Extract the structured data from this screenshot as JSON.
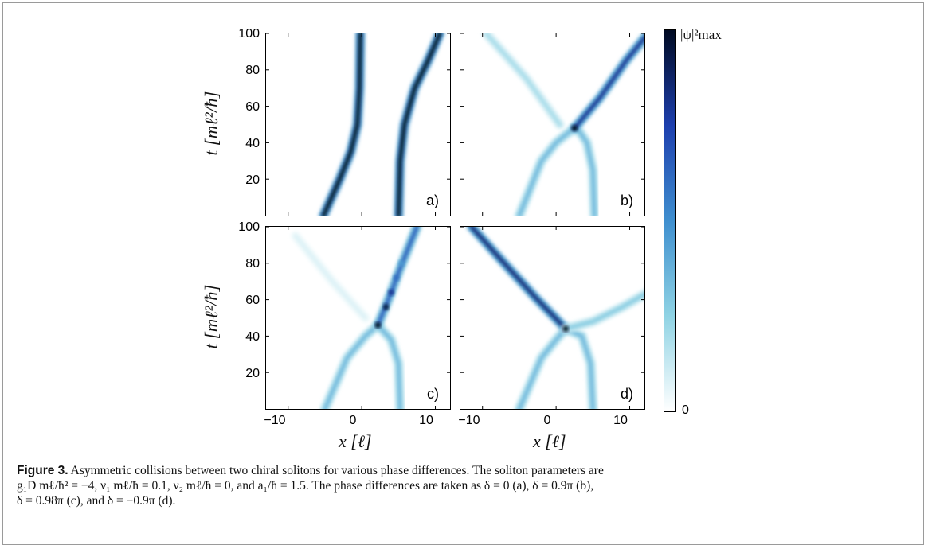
{
  "figure": {
    "ylabel": "t [mℓ²/ħ]",
    "xlabel": "x [ℓ]",
    "colorbar": {
      "max_label": "|ψ|²max",
      "min_label": "0",
      "colors": [
        "#ffffff",
        "#8fd3e4",
        "#3f8fcf",
        "#1d3fae",
        "#000a22"
      ]
    }
  },
  "chart_data": [
    {
      "type": "heatmap",
      "panel_label": "a)",
      "x_ticks": [
        "−10",
        "0",
        "10"
      ],
      "y_ticks": [
        "100",
        "80",
        "60",
        "40",
        "20"
      ],
      "xlim": [
        -13,
        12
      ],
      "ylim": [
        0,
        100
      ],
      "tracks": [
        {
          "points": [
            [
              -5.2,
              0
            ],
            [
              -3.0,
              20
            ],
            [
              -1.5,
              35
            ],
            [
              -0.6,
              50
            ],
            [
              -0.3,
              70
            ],
            [
              -0.2,
              100
            ]
          ],
          "intensity": 1.0
        },
        {
          "points": [
            [
              5.0,
              0
            ],
            [
              5.2,
              30
            ],
            [
              5.8,
              50
            ],
            [
              7.2,
              70
            ],
            [
              9.0,
              85
            ],
            [
              10.6,
              100
            ]
          ],
          "intensity": 1.0
        }
      ]
    },
    {
      "type": "heatmap",
      "panel_label": "b)",
      "x_ticks": [],
      "y_ticks": [],
      "xlim": [
        -13,
        12
      ],
      "ylim": [
        0,
        100
      ],
      "tracks": [
        {
          "points": [
            [
              -5.0,
              0
            ],
            [
              -2.0,
              30
            ],
            [
              0.0,
              40
            ],
            [
              1.5,
              45
            ],
            [
              2.5,
              48
            ]
          ],
          "intensity": 0.35
        },
        {
          "points": [
            [
              5.2,
              0
            ],
            [
              5.0,
              25
            ],
            [
              4.2,
              40
            ],
            [
              3.2,
              46
            ],
            [
              2.5,
              48
            ]
          ],
          "intensity": 0.35
        },
        {
          "points": [
            [
              2.5,
              48
            ],
            [
              6.0,
              65
            ],
            [
              9.5,
              85
            ],
            [
              12.5,
              100
            ]
          ],
          "intensity": 0.8
        },
        {
          "points": [
            [
              0.5,
              50
            ],
            [
              -4.0,
              75
            ],
            [
              -9.5,
              100
            ]
          ],
          "intensity": 0.2
        }
      ],
      "peaks": [
        [
          2.5,
          48,
          1.0
        ]
      ]
    },
    {
      "type": "heatmap",
      "panel_label": "c)",
      "x_ticks": [
        "−10",
        "0",
        "10"
      ],
      "y_ticks": [
        "100",
        "80",
        "60",
        "40",
        "20"
      ],
      "xlim": [
        -13,
        12
      ],
      "ylim": [
        0,
        100
      ],
      "tracks": [
        {
          "points": [
            [
              -5.0,
              0
            ],
            [
              -2.0,
              28
            ],
            [
              0.5,
              40
            ],
            [
              2.2,
              46
            ]
          ],
          "intensity": 0.35
        },
        {
          "points": [
            [
              5.2,
              0
            ],
            [
              5.0,
              25
            ],
            [
              4.0,
              38
            ],
            [
              2.2,
              46
            ]
          ],
          "intensity": 0.35
        },
        {
          "points": [
            [
              2.2,
              46
            ],
            [
              3.2,
              56
            ],
            [
              4.0,
              64
            ],
            [
              5.0,
              75
            ],
            [
              6.5,
              90
            ],
            [
              7.5,
              100
            ]
          ],
          "intensity": 0.65
        },
        {
          "points": [
            [
              0.5,
              50
            ],
            [
              -4.0,
              70
            ],
            [
              -9.0,
              95
            ]
          ],
          "intensity": 0.08
        }
      ],
      "peaks": [
        [
          2.2,
          46,
          1.0
        ],
        [
          3.3,
          56,
          0.95
        ],
        [
          4.0,
          64,
          0.8
        ],
        [
          4.7,
          72,
          0.6
        ],
        [
          5.4,
          80,
          0.45
        ]
      ]
    },
    {
      "type": "heatmap",
      "panel_label": "d)",
      "x_ticks": [
        "−10",
        "0",
        "10"
      ],
      "y_ticks": [],
      "xlim": [
        -13,
        12
      ],
      "ylim": [
        0,
        100
      ],
      "tracks": [
        {
          "points": [
            [
              -5.0,
              0
            ],
            [
              -2.0,
              28
            ],
            [
              0.0,
              38
            ],
            [
              1.3,
              44
            ]
          ],
          "intensity": 0.35
        },
        {
          "points": [
            [
              5.0,
              0
            ],
            [
              4.7,
              25
            ],
            [
              3.5,
              40
            ],
            [
              1.3,
              44
            ]
          ],
          "intensity": 0.35
        },
        {
          "points": [
            [
              1.3,
              44
            ],
            [
              -3.0,
              62
            ],
            [
              -7.5,
              82
            ],
            [
              -11.5,
              100
            ]
          ],
          "intensity": 0.85
        },
        {
          "points": [
            [
              1.3,
              44
            ],
            [
              5.0,
              48
            ],
            [
              9.0,
              56
            ],
            [
              12.5,
              64
            ]
          ],
          "intensity": 0.28
        }
      ],
      "peaks": [
        [
          1.3,
          44,
          1.0
        ]
      ]
    }
  ],
  "caption": {
    "label": "Figure 3.",
    "lines": [
      "Asymmetric collisions between two chiral solitons for various phase differences. The soliton parameters are",
      "g₁D mℓ/ħ² = −4, ν₁ mℓ/ħ = 0.1, ν₂ mℓ/ħ = 0, and a₁/ħ = 1.5. The phase differences are taken as δ = 0 (a), δ = 0.9π (b),",
      "δ = 0.98π (c), and δ = −0.9π (d)."
    ]
  }
}
